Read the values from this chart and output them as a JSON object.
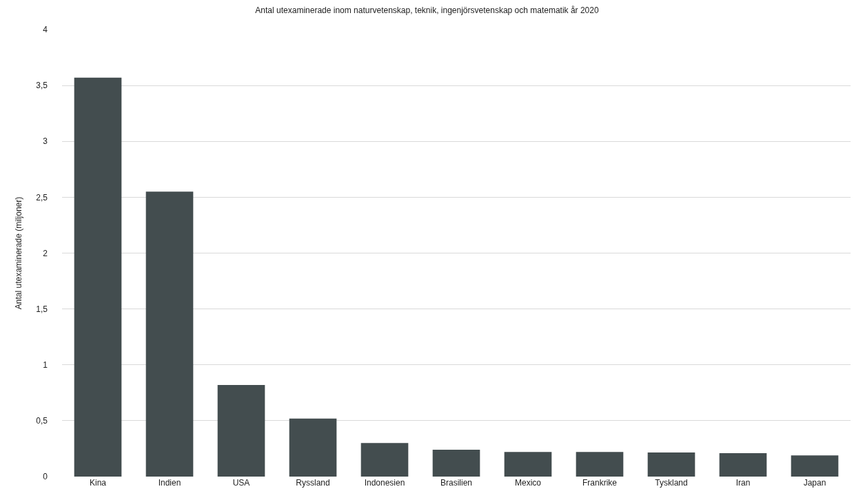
{
  "chart_data": {
    "type": "bar",
    "title": "Antal utexaminerade inom naturvetenskap, teknik, ingenjörsvetenskap och matematik år 2020",
    "ylabel": "Antal utexaminerade (miljoner)",
    "categories": [
      "Kina",
      "Indien",
      "USA",
      "Ryssland",
      "Indonesien",
      "Brasilien",
      "Mexico",
      "Frankrike",
      "Tyskland",
      "Iran",
      "Japan"
    ],
    "values": [
      3.57,
      2.55,
      0.82,
      0.52,
      0.3,
      0.24,
      0.22,
      0.22,
      0.215,
      0.21,
      0.19
    ],
    "color": "#434d4f",
    "ylim": [
      0,
      4
    ],
    "yticks": [
      0,
      {
        "value": 0.5,
        "label": "0,5"
      },
      1,
      {
        "value": 1.5,
        "label": "1,5"
      },
      2,
      {
        "value": 2.5,
        "label": "2,5"
      },
      3,
      {
        "value": 3.5,
        "label": "3,5"
      },
      4
    ],
    "grid": "y"
  }
}
